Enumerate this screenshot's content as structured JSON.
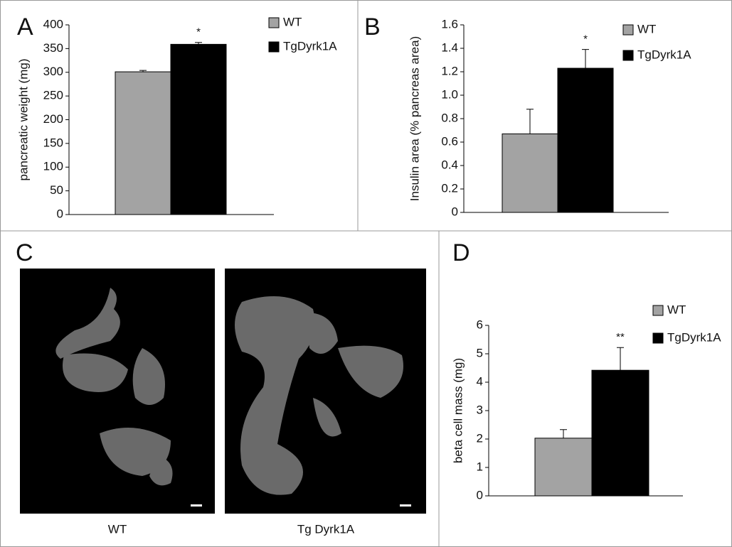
{
  "chart_data": [
    {
      "type": "bar",
      "panel": "A",
      "y_label": "pancreatic weight (mg)",
      "categories": [
        null
      ],
      "series": [
        {
          "name": "WT",
          "color": "#a3a3a3",
          "values": [
            301
          ],
          "errors": [
            3
          ]
        },
        {
          "name": "TgDyrk1A",
          "color": "#000000",
          "values": [
            359
          ],
          "errors": [
            4
          ],
          "significance": "*"
        }
      ],
      "ylim": [
        0,
        400
      ],
      "yticks": [
        0,
        50,
        100,
        150,
        200,
        250,
        300,
        350,
        400
      ],
      "grid": false,
      "legend": "upper right"
    },
    {
      "type": "bar",
      "panel": "B",
      "y_label": "Insulin area (% pancreas area)",
      "categories": [
        null
      ],
      "series": [
        {
          "name": "WT",
          "color": "#a3a3a3",
          "values": [
            0.67
          ],
          "errors": [
            0.21
          ]
        },
        {
          "name": "TgDyrk1A",
          "color": "#000000",
          "values": [
            1.23
          ],
          "errors": [
            0.16
          ],
          "significance": "*"
        }
      ],
      "ylim": [
        0,
        1.6
      ],
      "yticks": [
        0,
        0.2,
        0.4,
        0.6,
        0.8,
        {
          "value": 1,
          "label": "1.0"
        },
        1.2,
        1.4,
        1.6
      ],
      "grid": false,
      "legend": "upper right"
    },
    {
      "type": "bar",
      "panel": "D",
      "y_label": "beta cell mass (mg)",
      "categories": [
        null
      ],
      "series": [
        {
          "name": "WT",
          "color": "#a3a3a3",
          "values": [
            2.03
          ],
          "errors": [
            0.3
          ]
        },
        {
          "name": "TgDyrk1A",
          "color": "#000000",
          "values": [
            4.42
          ],
          "errors": [
            0.8
          ],
          "significance": "**"
        }
      ],
      "ylim": [
        0,
        6
      ],
      "yticks": [
        0,
        1,
        2,
        3,
        4,
        5,
        6
      ],
      "grid": false,
      "legend": "upper right"
    }
  ],
  "image_panel": {
    "panel": "C",
    "captions": [
      "WT",
      "Tg Dyrk1A"
    ]
  }
}
